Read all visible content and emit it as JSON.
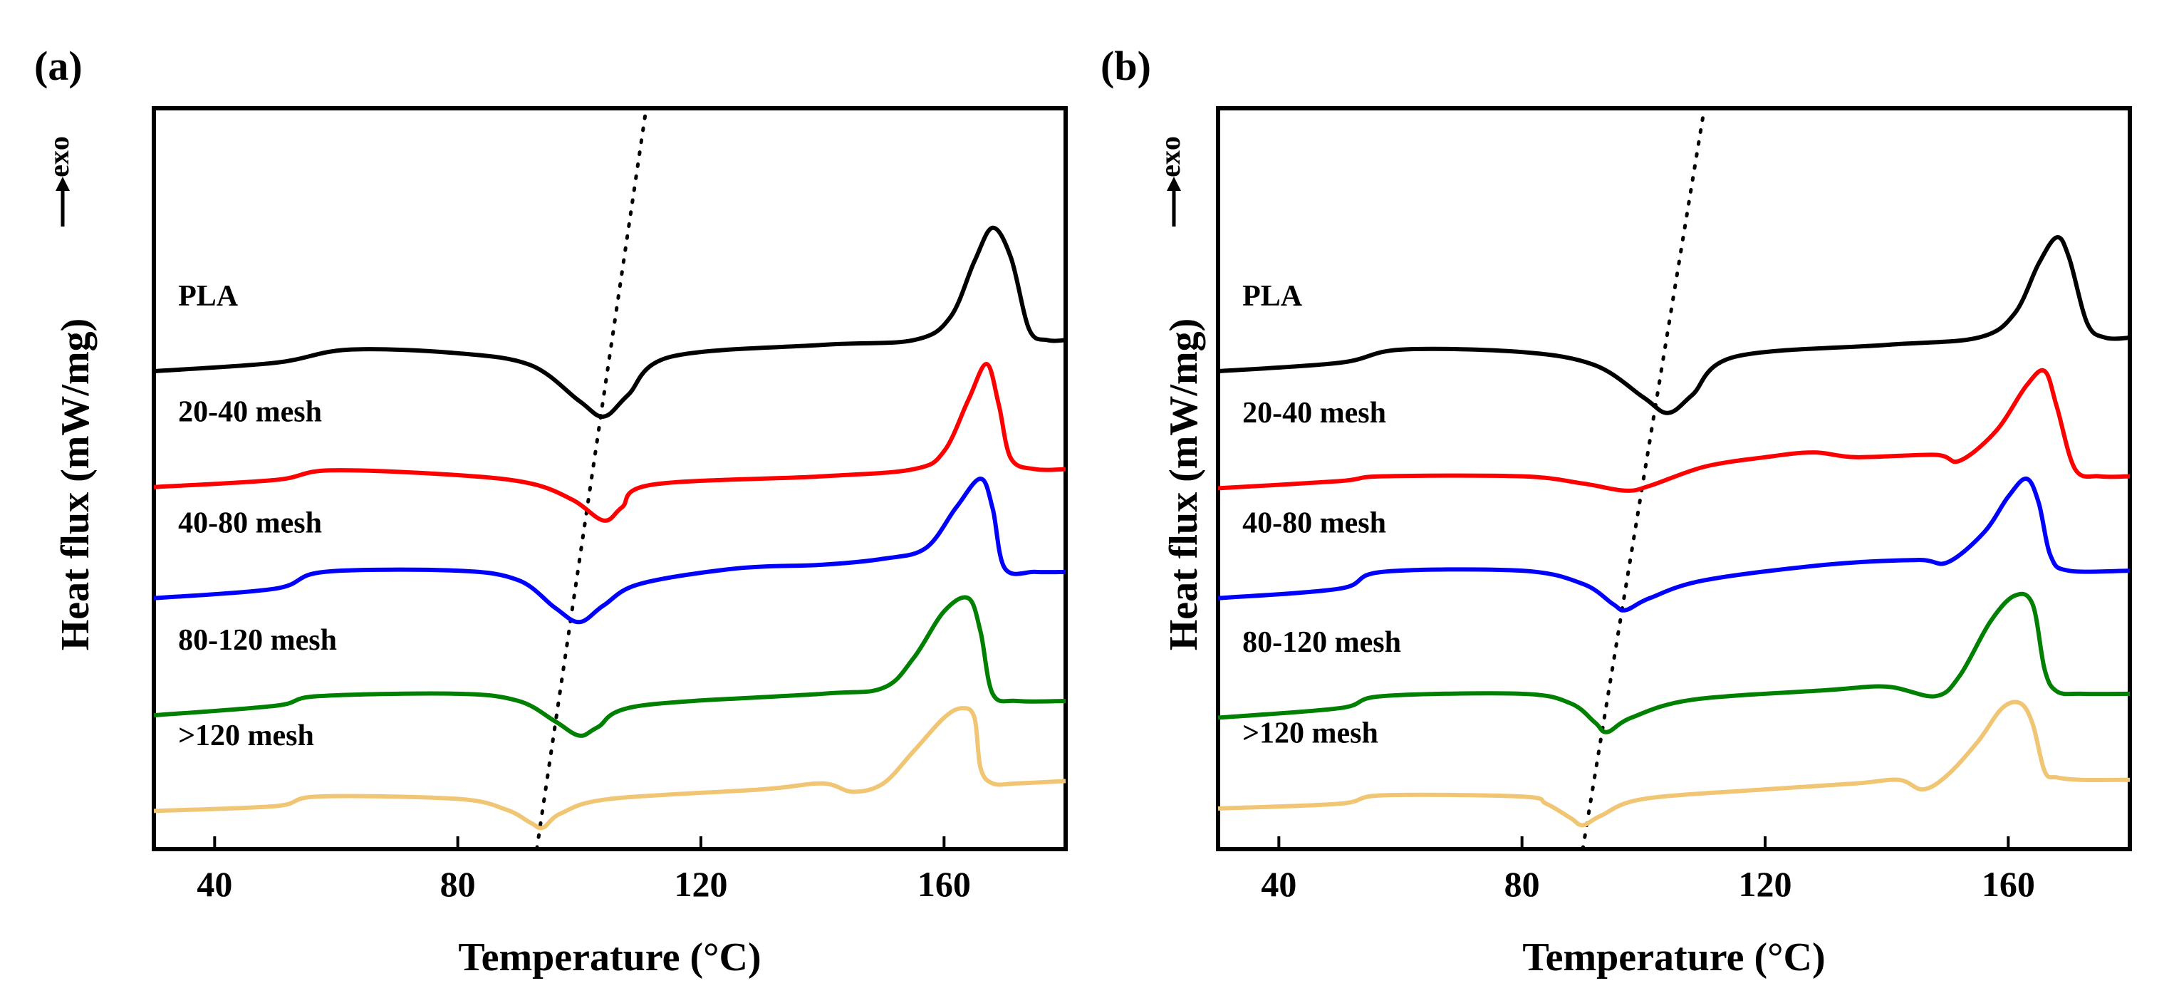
{
  "figure": {
    "panels": [
      "(a)",
      "(b)"
    ],
    "xlabel": "Temperature (°C)",
    "ylabel": "Heat flux (mW/mg)",
    "exo_label": "exo"
  },
  "chart_data": [
    {
      "type": "line",
      "panel": "(a)",
      "xlabel": "Temperature (°C)",
      "ylabel": "Heat flux (mW/mg)",
      "xlim": [
        30,
        180
      ],
      "ylim": [
        0,
        6.2
      ],
      "xticks": [
        40,
        80,
        120,
        160
      ],
      "yticks": [],
      "grid": false,
      "guide_line": {
        "style": "dotted",
        "points": [
          [
            93,
            0
          ],
          [
            111,
            6.2
          ]
        ]
      },
      "series": [
        {
          "name": "PLA",
          "color": "#000000",
          "points": [
            [
              30,
              4.0
            ],
            [
              50,
              4.07
            ],
            [
              62,
              4.18
            ],
            [
              80,
              4.15
            ],
            [
              92,
              4.05
            ],
            [
              100,
              3.75
            ],
            [
              104,
              3.62
            ],
            [
              108,
              3.8
            ],
            [
              115,
              4.12
            ],
            [
              140,
              4.22
            ],
            [
              155,
              4.26
            ],
            [
              161,
              4.45
            ],
            [
              165,
              4.92
            ],
            [
              168,
              5.2
            ],
            [
              171,
              4.95
            ],
            [
              174,
              4.35
            ],
            [
              177,
              4.26
            ],
            [
              180,
              4.26
            ]
          ]
        },
        {
          "name": "20-40 mesh",
          "color": "#ff0000",
          "points": [
            [
              30,
              3.03
            ],
            [
              50,
              3.09
            ],
            [
              59,
              3.17
            ],
            [
              80,
              3.13
            ],
            [
              92,
              3.06
            ],
            [
              99,
              2.92
            ],
            [
              104,
              2.75
            ],
            [
              107,
              2.86
            ],
            [
              112,
              3.05
            ],
            [
              140,
              3.12
            ],
            [
              155,
              3.18
            ],
            [
              160,
              3.33
            ],
            [
              164,
              3.76
            ],
            [
              167,
              4.06
            ],
            [
              169,
              3.72
            ],
            [
              171,
              3.27
            ],
            [
              175,
              3.18
            ],
            [
              180,
              3.18
            ]
          ]
        },
        {
          "name": "40-80 mesh",
          "color": "#0000ff",
          "points": [
            [
              30,
              2.1
            ],
            [
              50,
              2.18
            ],
            [
              58,
              2.32
            ],
            [
              80,
              2.33
            ],
            [
              90,
              2.25
            ],
            [
              96,
              2.02
            ],
            [
              100,
              1.9
            ],
            [
              104,
              2.04
            ],
            [
              110,
              2.22
            ],
            [
              126,
              2.35
            ],
            [
              140,
              2.38
            ],
            [
              150,
              2.43
            ],
            [
              157,
              2.52
            ],
            [
              162,
              2.86
            ],
            [
              166,
              3.1
            ],
            [
              168,
              2.85
            ],
            [
              170,
              2.35
            ],
            [
              175,
              2.32
            ],
            [
              180,
              2.32
            ]
          ]
        },
        {
          "name": "80-120 mesh",
          "color": "#008000",
          "points": [
            [
              30,
              1.12
            ],
            [
              50,
              1.2
            ],
            [
              57,
              1.28
            ],
            [
              80,
              1.3
            ],
            [
              90,
              1.24
            ],
            [
              96,
              1.07
            ],
            [
              100,
              0.95
            ],
            [
              103,
              1.02
            ],
            [
              110,
              1.2
            ],
            [
              140,
              1.3
            ],
            [
              150,
              1.35
            ],
            [
              155,
              1.6
            ],
            [
              160,
              1.99
            ],
            [
              164,
              2.1
            ],
            [
              166,
              1.82
            ],
            [
              168,
              1.3
            ],
            [
              172,
              1.24
            ],
            [
              180,
              1.24
            ]
          ]
        },
        {
          "name": ">120 mesh",
          "color": "#f0c674",
          "points": [
            [
              30,
              0.32
            ],
            [
              50,
              0.36
            ],
            [
              57,
              0.44
            ],
            [
              80,
              0.42
            ],
            [
              88,
              0.33
            ],
            [
              92,
              0.22
            ],
            [
              94,
              0.18
            ],
            [
              97,
              0.3
            ],
            [
              105,
              0.42
            ],
            [
              130,
              0.5
            ],
            [
              140,
              0.55
            ],
            [
              145,
              0.48
            ],
            [
              150,
              0.55
            ],
            [
              155,
              0.82
            ],
            [
              160,
              1.1
            ],
            [
              163,
              1.18
            ],
            [
              165,
              1.1
            ],
            [
              166,
              0.68
            ],
            [
              168,
              0.55
            ],
            [
              172,
              0.55
            ],
            [
              180,
              0.57
            ]
          ]
        }
      ],
      "legend_labels": [
        "PLA",
        "20-40 mesh",
        "40-80 mesh",
        "80-120 mesh",
        ">120 mesh"
      ]
    },
    {
      "type": "line",
      "panel": "(b)",
      "xlabel": "Temperature (°C)",
      "ylabel": "Heat flux (mW/mg)",
      "xlim": [
        30,
        180
      ],
      "ylim": [
        0,
        6.2
      ],
      "xticks": [
        40,
        80,
        120,
        160
      ],
      "yticks": [],
      "grid": false,
      "guide_line": {
        "style": "dotted",
        "points": [
          [
            90,
            0
          ],
          [
            110,
            6.2
          ]
        ]
      },
      "series": [
        {
          "name": "PLA",
          "color": "#000000",
          "points": [
            [
              30,
              4.0
            ],
            [
              50,
              4.07
            ],
            [
              60,
              4.18
            ],
            [
              80,
              4.16
            ],
            [
              92,
              4.05
            ],
            [
              100,
              3.78
            ],
            [
              104,
              3.65
            ],
            [
              108,
              3.8
            ],
            [
              115,
              4.12
            ],
            [
              140,
              4.22
            ],
            [
              155,
              4.28
            ],
            [
              161,
              4.48
            ],
            [
              165,
              4.9
            ],
            [
              168,
              5.12
            ],
            [
              170,
              4.95
            ],
            [
              173,
              4.4
            ],
            [
              176,
              4.28
            ],
            [
              180,
              4.28
            ]
          ]
        },
        {
          "name": "20-40 mesh",
          "color": "#ff0000",
          "points": [
            [
              30,
              3.02
            ],
            [
              50,
              3.08
            ],
            [
              57,
              3.12
            ],
            [
              80,
              3.12
            ],
            [
              90,
              3.06
            ],
            [
              97,
              3.0
            ],
            [
              101,
              3.04
            ],
            [
              110,
              3.2
            ],
            [
              120,
              3.28
            ],
            [
              128,
              3.32
            ],
            [
              135,
              3.28
            ],
            [
              148,
              3.3
            ],
            [
              152,
              3.25
            ],
            [
              158,
              3.5
            ],
            [
              163,
              3.88
            ],
            [
              166,
              4.0
            ],
            [
              168,
              3.7
            ],
            [
              171,
              3.18
            ],
            [
              175,
              3.12
            ],
            [
              180,
              3.12
            ]
          ]
        },
        {
          "name": "40-80 mesh",
          "color": "#0000ff",
          "points": [
            [
              30,
              2.1
            ],
            [
              50,
              2.18
            ],
            [
              57,
              2.32
            ],
            [
              80,
              2.33
            ],
            [
              90,
              2.22
            ],
            [
              95,
              2.05
            ],
            [
              97,
              2.0
            ],
            [
              101,
              2.1
            ],
            [
              110,
              2.25
            ],
            [
              130,
              2.38
            ],
            [
              145,
              2.42
            ],
            [
              150,
              2.4
            ],
            [
              156,
              2.65
            ],
            [
              160,
              2.95
            ],
            [
              163,
              3.1
            ],
            [
              165,
              2.9
            ],
            [
              167,
              2.45
            ],
            [
              170,
              2.33
            ],
            [
              180,
              2.33
            ]
          ]
        },
        {
          "name": "80-120 mesh",
          "color": "#008000",
          "points": [
            [
              30,
              1.1
            ],
            [
              50,
              1.18
            ],
            [
              57,
              1.28
            ],
            [
              80,
              1.3
            ],
            [
              88,
              1.22
            ],
            [
              92,
              1.06
            ],
            [
              94,
              0.98
            ],
            [
              98,
              1.1
            ],
            [
              108,
              1.25
            ],
            [
              130,
              1.33
            ],
            [
              140,
              1.36
            ],
            [
              148,
              1.28
            ],
            [
              152,
              1.45
            ],
            [
              157,
              1.9
            ],
            [
              161,
              2.12
            ],
            [
              164,
              2.05
            ],
            [
              166,
              1.5
            ],
            [
              168,
              1.32
            ],
            [
              172,
              1.3
            ],
            [
              180,
              1.3
            ]
          ]
        },
        {
          "name": ">120 mesh",
          "color": "#f0c674",
          "points": [
            [
              30,
              0.34
            ],
            [
              50,
              0.38
            ],
            [
              57,
              0.45
            ],
            [
              80,
              0.44
            ],
            [
              84,
              0.38
            ],
            [
              88,
              0.26
            ],
            [
              90,
              0.2
            ],
            [
              93,
              0.28
            ],
            [
              100,
              0.42
            ],
            [
              120,
              0.5
            ],
            [
              135,
              0.55
            ],
            [
              142,
              0.58
            ],
            [
              146,
              0.5
            ],
            [
              150,
              0.62
            ],
            [
              155,
              0.9
            ],
            [
              159,
              1.18
            ],
            [
              162,
              1.22
            ],
            [
              164,
              1.05
            ],
            [
              166,
              0.65
            ],
            [
              168,
              0.6
            ],
            [
              172,
              0.58
            ],
            [
              180,
              0.58
            ]
          ]
        }
      ],
      "legend_labels": [
        "PLA",
        "20-40 mesh",
        "40-80 mesh",
        "80-120 mesh",
        ">120 mesh"
      ]
    }
  ]
}
